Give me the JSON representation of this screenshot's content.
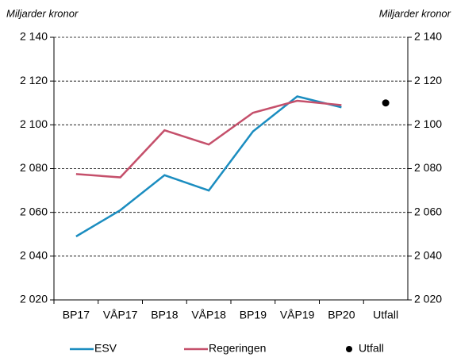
{
  "chart_data": {
    "type": "line",
    "ylabel": "Miljarder kronor",
    "y2label": "Miljarder kronor",
    "categories": [
      "BP17",
      "VÅP17",
      "BP18",
      "VÅP18",
      "BP19",
      "VÅP19",
      "BP20",
      "Utfall"
    ],
    "series": [
      {
        "name": "ESV",
        "color": "#1b8dc0",
        "mode": "lines",
        "values": [
          2049,
          2061,
          2077,
          2070,
          2097,
          2113,
          2108,
          null
        ]
      },
      {
        "name": "Regeringen",
        "color": "#c5506b",
        "mode": "lines",
        "values": [
          2077.5,
          2076,
          2097.5,
          2091,
          2105.5,
          2111,
          2109,
          null
        ]
      },
      {
        "name": "Utfall",
        "color": "#000000",
        "mode": "markers",
        "values": [
          null,
          null,
          null,
          null,
          null,
          null,
          null,
          2110
        ]
      }
    ],
    "ylim": [
      2020,
      2140
    ],
    "yticks": [
      {
        "value": 2020,
        "label": "2 020"
      },
      {
        "value": 2040,
        "label": "2 040"
      },
      {
        "value": 2060,
        "label": "2 060"
      },
      {
        "value": 2080,
        "label": "2 080"
      },
      {
        "value": 2100,
        "label": "2 100"
      },
      {
        "value": 2120,
        "label": "2 120"
      },
      {
        "value": 2140,
        "label": "2 140"
      }
    ],
    "y2lim": [
      2020,
      2140
    ],
    "y2ticks": [
      {
        "value": 2020,
        "label": "2 020"
      },
      {
        "value": 2040,
        "label": "2 040"
      },
      {
        "value": 2060,
        "label": "2 060"
      },
      {
        "value": 2080,
        "label": "2 080"
      },
      {
        "value": 2100,
        "label": "2 100"
      },
      {
        "value": 2120,
        "label": "2 120"
      },
      {
        "value": 2140,
        "label": "2 140"
      }
    ],
    "grid": true
  }
}
